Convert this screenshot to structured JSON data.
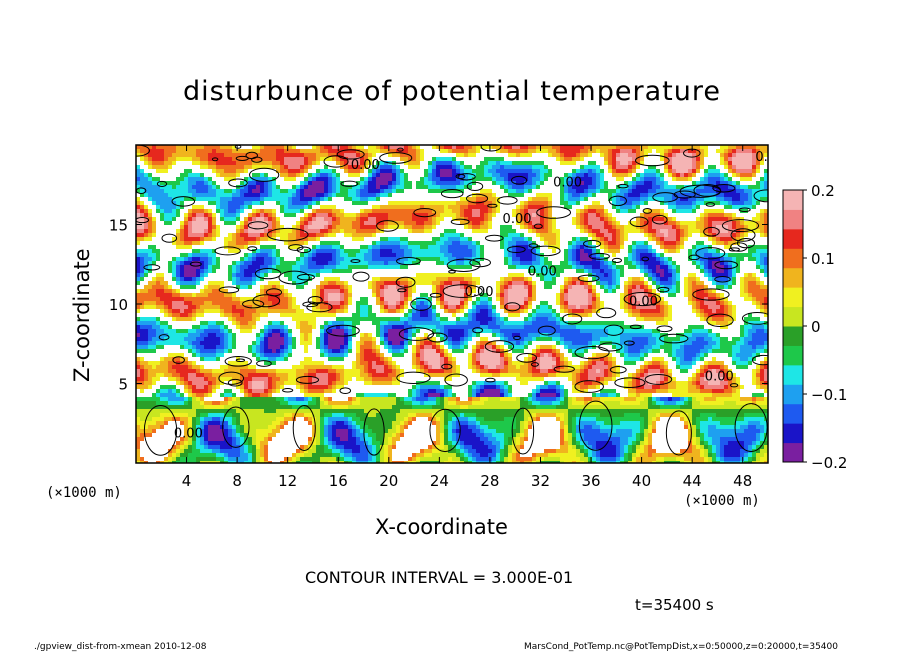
{
  "title": "disturbunce of potential temperature",
  "chart_data": {
    "type": "heatmap",
    "title": "disturbunce of potential temperature",
    "xlabel": "X-coordinate",
    "ylabel": "Z-coordinate",
    "x_unit_label": "(×1000 m)",
    "xlim": [
      0,
      50
    ],
    "ylim": [
      0,
      20
    ],
    "xticks": [
      4,
      8,
      12,
      16,
      20,
      24,
      28,
      32,
      36,
      40,
      44,
      48
    ],
    "yticks": [
      5,
      10,
      15
    ],
    "colorbar": {
      "min": -0.2,
      "max": 0.2,
      "ticks": [
        "0.2",
        "0.1",
        "0",
        "−0.1",
        "−0.2"
      ]
    },
    "contour_labels": [
      "0.00"
    ],
    "colors": [
      "#7a1fa0",
      "#1a14c8",
      "#1e5af0",
      "#1ea0f0",
      "#1ee6e6",
      "#1ec84a",
      "#2aa028",
      "#c8e620",
      "#f0f020",
      "#f0b41e",
      "#f06e1e",
      "#e6281e",
      "#f08282",
      "#f5b4b4"
    ]
  },
  "contour_interval": "CONTOUR INTERVAL = 3.000E-01",
  "time": "t=35400 s",
  "footer_left": "./gpview_dist-from-xmean  2010-12-08",
  "footer_right": "MarsCond_PotTemp.nc@PotTempDist,x=0:50000,z=0:20000,t=35400"
}
